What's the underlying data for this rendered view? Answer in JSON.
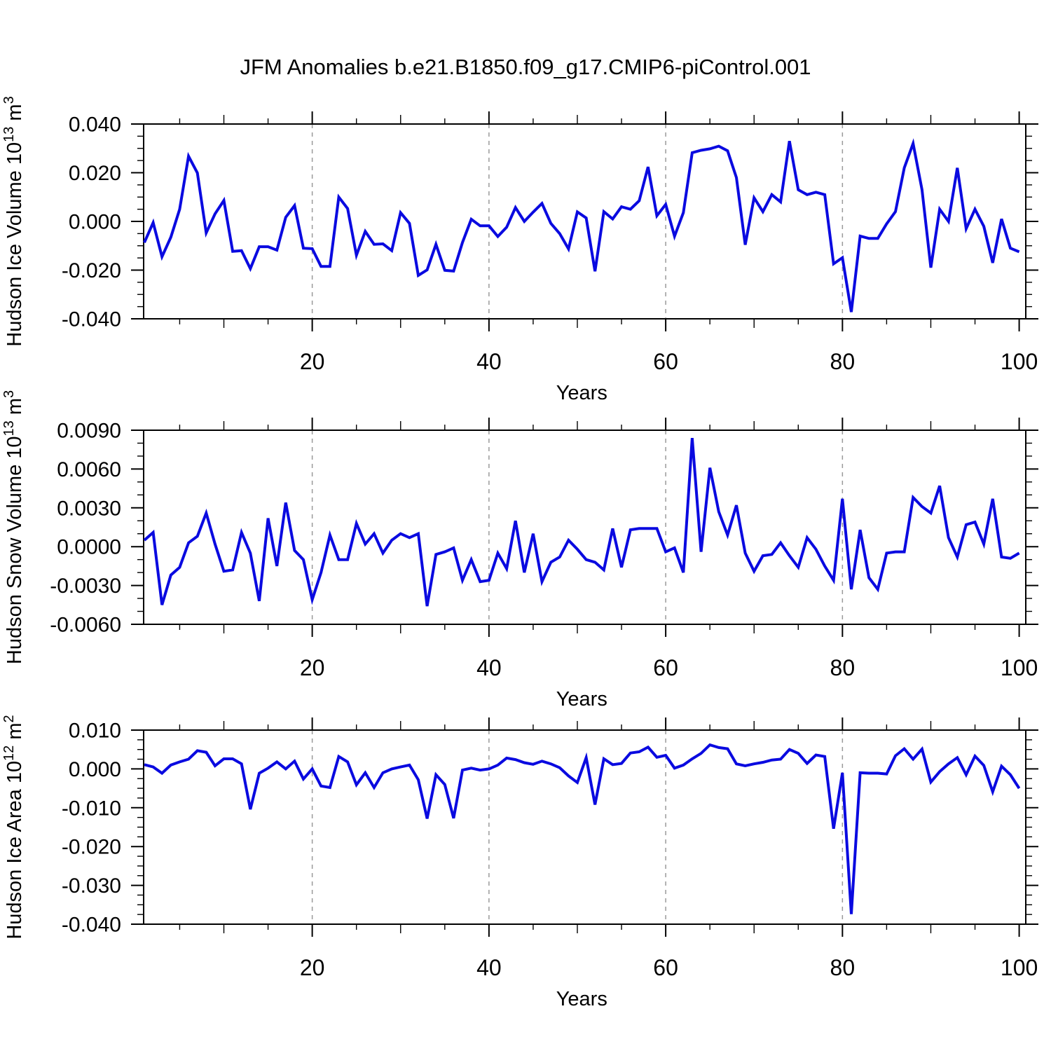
{
  "title": "JFM Anomalies b.e21.B1850.f09_g17.CMIP6-piControl.001",
  "chart_data": [
    {
      "type": "line",
      "name": "hudson-ice-volume",
      "ylabel": "Hudson Ice Volume 10^{13} m^{3}",
      "xlabel": "Years",
      "legend": null,
      "grid_x": [
        20,
        40,
        60,
        80
      ],
      "xtick_labels": [
        20,
        40,
        60,
        80,
        100
      ],
      "xtick_minor_step": 5,
      "ylim": [
        -0.04,
        0.04
      ],
      "ytick_step": 0.02,
      "yminor_step": 0.005,
      "ydecimals": 3,
      "x_start": 1,
      "x_step": 1,
      "line_color": "#0a0ae0",
      "values": [
        -0.0087,
        -0.0005,
        -0.0145,
        -0.0065,
        0.005,
        0.0268,
        0.0199,
        -0.0047,
        0.0031,
        0.0086,
        -0.0123,
        -0.012,
        -0.0194,
        -0.0104,
        -0.0104,
        -0.0118,
        0.0017,
        0.0065,
        -0.011,
        -0.0112,
        -0.0185,
        -0.0185,
        0.01,
        0.0053,
        -0.0139,
        -0.0041,
        -0.0094,
        -0.0092,
        -0.012,
        0.0036,
        -0.0008,
        -0.0222,
        -0.0199,
        -0.0094,
        -0.0201,
        -0.0204,
        -0.0087,
        0.0009,
        -0.0018,
        -0.0018,
        -0.0062,
        -0.0024,
        0.0057,
        0.0,
        0.0038,
        0.0074,
        -0.0008,
        -0.005,
        -0.0113,
        0.0039,
        0.0014,
        -0.0205,
        0.004,
        0.001,
        0.006,
        0.005,
        0.0085,
        0.0224,
        0.0023,
        0.007,
        -0.0061,
        0.0036,
        0.0282,
        0.0292,
        0.0298,
        0.0309,
        0.029,
        0.018,
        -0.0096,
        0.0097,
        0.004,
        0.011,
        0.008,
        0.033,
        0.013,
        0.011,
        0.012,
        0.011,
        -0.0174,
        -0.0149,
        -0.0372,
        -0.006,
        -0.007,
        -0.007,
        -0.001,
        0.004,
        0.022,
        0.032,
        0.013,
        -0.019,
        0.005,
        0.0,
        0.022,
        -0.003,
        0.005,
        -0.002,
        -0.017,
        0.001,
        -0.011,
        -0.0125
      ]
    },
    {
      "type": "line",
      "name": "hudson-snow-volume",
      "ylabel": "Hudson Snow Volume 10^{13} m^{3}",
      "xlabel": "Years",
      "legend": null,
      "grid_x": [
        20,
        40,
        60,
        80
      ],
      "xtick_labels": [
        20,
        40,
        60,
        80,
        100
      ],
      "xtick_minor_step": 5,
      "ylim": [
        -0.006,
        0.009
      ],
      "ytick_step": 0.003,
      "yminor_step": 0.001,
      "ydecimals": 4,
      "x_start": 1,
      "x_step": 1,
      "line_color": "#0a0ae0",
      "values": [
        0.0005,
        0.0011,
        -0.0045,
        -0.0022,
        -0.0016,
        0.0003,
        0.0008,
        0.0026,
        0.0002,
        -0.0019,
        -0.0018,
        0.0011,
        -0.0005,
        -0.0042,
        0.0022,
        -0.0015,
        0.0034,
        -0.0003,
        -0.001,
        -0.0041,
        -0.002,
        0.0009,
        -0.001,
        -0.001,
        0.0018,
        0.0002,
        0.001,
        -0.0005,
        0.0005,
        0.001,
        0.0007,
        0.001,
        -0.0046,
        -0.0006,
        -0.0004,
        -0.0001,
        -0.0026,
        -0.001,
        -0.0027,
        -0.0026,
        -0.0005,
        -0.0017,
        0.002,
        -0.002,
        0.001,
        -0.0027,
        -0.0012,
        -0.0008,
        0.0005,
        -0.0002,
        -0.001,
        -0.0012,
        -0.0018,
        0.0014,
        -0.0016,
        0.0013,
        0.0014,
        0.0014,
        0.0014,
        -0.0004,
        -0.0001,
        -0.002,
        0.0084,
        -0.0004,
        0.0061,
        0.0027,
        0.0009,
        0.0032,
        -0.0005,
        -0.0019,
        -0.0007,
        -0.0006,
        0.0003,
        -0.0007,
        -0.0016,
        0.0007,
        -0.0002,
        -0.0015,
        -0.0026,
        0.0037,
        -0.0033,
        0.0013,
        -0.0024,
        -0.0033,
        -0.0005,
        -0.0004,
        -0.0004,
        0.0038,
        0.0031,
        0.0026,
        0.0047,
        0.0007,
        -0.0008,
        0.0017,
        0.0019,
        0.0002,
        0.0037,
        -0.0008,
        -0.0009,
        -0.0005
      ]
    },
    {
      "type": "line",
      "name": "hudson-ice-area",
      "ylabel": "Hudson Ice Area 10^{12} m^{2}",
      "xlabel": "Years",
      "legend": null,
      "grid_x": [
        20,
        40,
        60,
        80
      ],
      "xtick_labels": [
        20,
        40,
        60,
        80,
        100
      ],
      "xtick_minor_step": 5,
      "ylim": [
        -0.04,
        0.01
      ],
      "ytick_step": 0.01,
      "yminor_step": 0.0025,
      "ydecimals": 3,
      "x_start": 1,
      "x_step": 1,
      "line_color": "#0a0ae0",
      "values": [
        0.0011,
        0.0005,
        -0.0011,
        0.001,
        0.0018,
        0.0025,
        0.0047,
        0.0043,
        0.0008,
        0.0026,
        0.0026,
        0.0013,
        -0.0104,
        -0.0011,
        0.0002,
        0.0018,
        0.0,
        0.002,
        -0.0026,
        0.0,
        -0.0044,
        -0.0048,
        0.0032,
        0.0018,
        -0.0041,
        -0.001,
        -0.0048,
        -0.001,
        0.0,
        0.0005,
        0.001,
        -0.0028,
        -0.0128,
        -0.0015,
        -0.004,
        -0.0127,
        -0.0003,
        0.0002,
        -0.0003,
        0.0,
        0.001,
        0.0028,
        0.0024,
        0.0016,
        0.0012,
        0.002,
        0.0013,
        0.0003,
        -0.0018,
        -0.0035,
        0.0029,
        -0.0092,
        0.0026,
        0.0011,
        0.0014,
        0.0041,
        0.0044,
        0.0056,
        0.003,
        0.0035,
        0.0002,
        0.001,
        0.0026,
        0.004,
        0.0062,
        0.0055,
        0.0052,
        0.0013,
        0.0008,
        0.0013,
        0.0017,
        0.0023,
        0.0025,
        0.005,
        0.004,
        0.0014,
        0.0036,
        0.0032,
        -0.0154,
        -0.001,
        -0.0374,
        -0.001,
        -0.0011,
        -0.0011,
        -0.0013,
        0.0034,
        0.0052,
        0.0025,
        0.0051,
        -0.0034,
        -0.0007,
        0.0013,
        0.0029,
        -0.0015,
        0.0033,
        0.0009,
        -0.0059,
        0.0007,
        -0.0015,
        -0.005
      ]
    }
  ],
  "style": {
    "grid_color": "#9a9a9a",
    "axis_color": "#000000",
    "text_color": "#000000"
  }
}
